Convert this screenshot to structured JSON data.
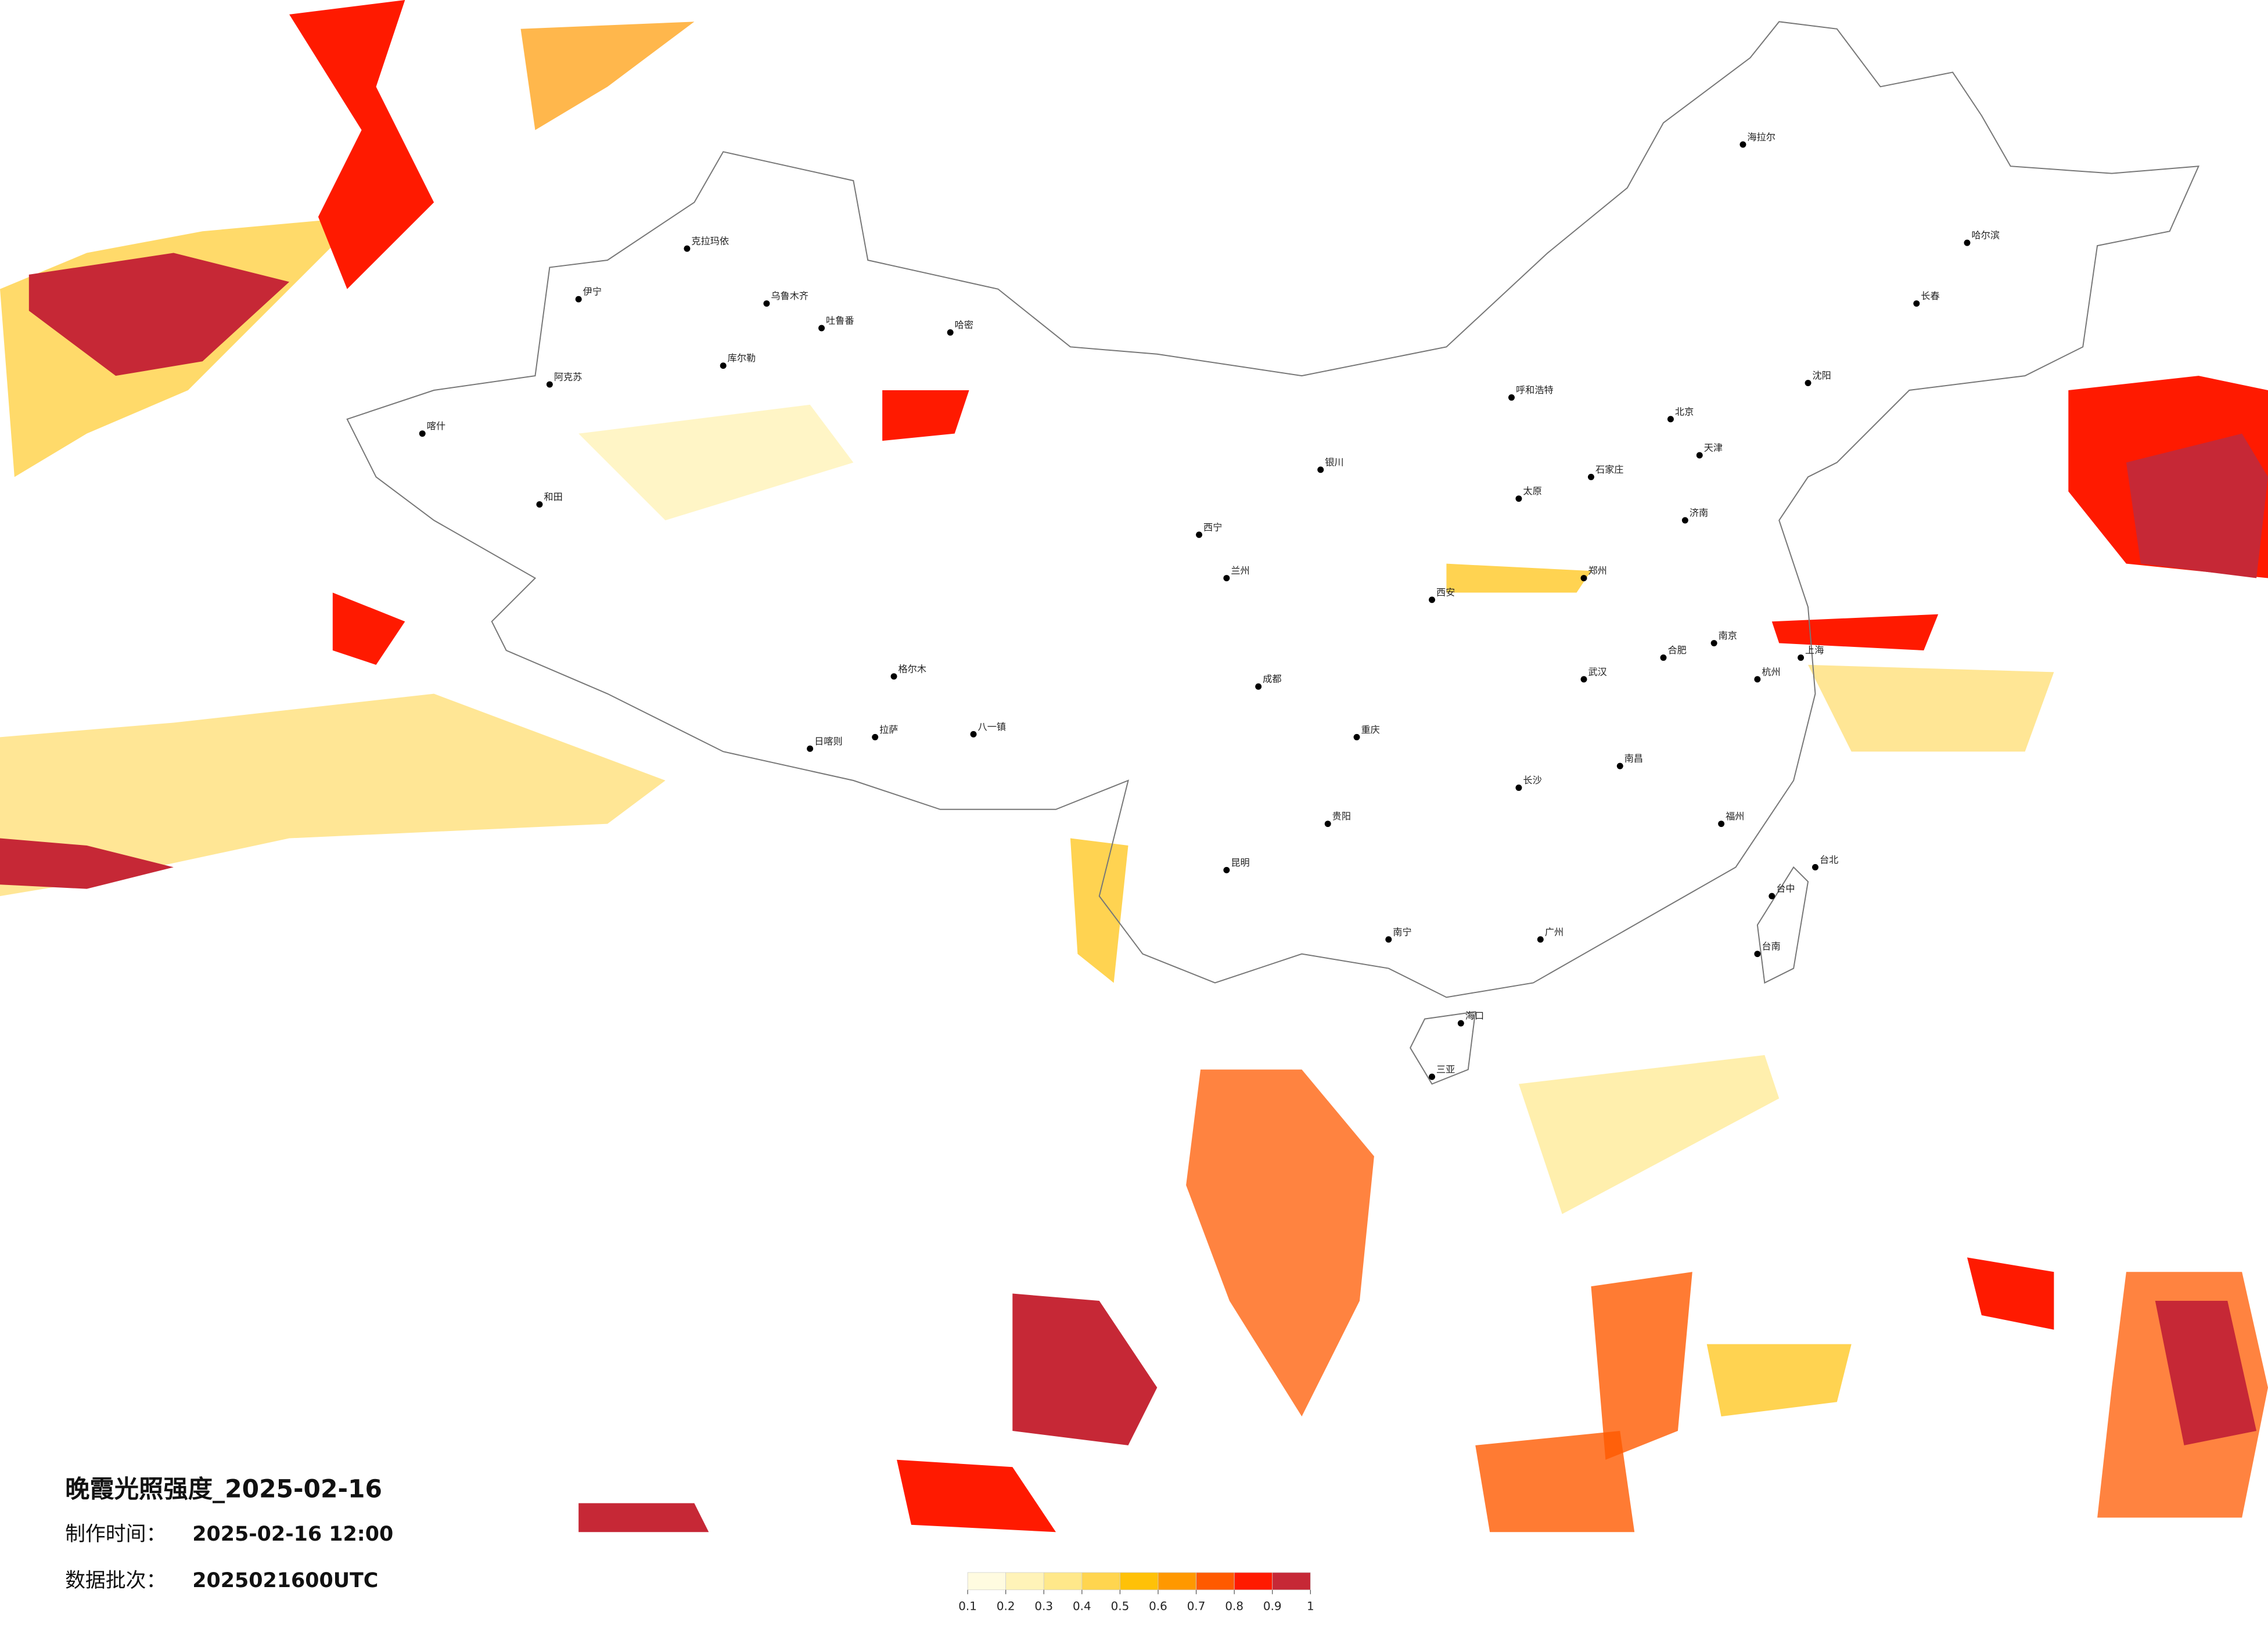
{
  "title": "晚霞光照强度_2025-02-16",
  "made_time": {
    "label": "制作时间：",
    "value": "2025-02-16 12:00"
  },
  "batch": {
    "label": "数据批次：",
    "value": "2025021600UTC"
  },
  "legend": {
    "colors": [
      "#fffbe0",
      "#fff3b8",
      "#ffe88a",
      "#ffd54f",
      "#ffc107",
      "#ff9800",
      "#ff5a00",
      "#ff1a00",
      "#c62836"
    ],
    "ticks": [
      0.1,
      0.2,
      0.3,
      0.4,
      0.5,
      0.6,
      0.7,
      0.8,
      0.9,
      1
    ]
  },
  "cities": [
    "克拉玛依",
    "乌鲁木齐",
    "吐鲁番",
    "库尔勒",
    "阿克苏",
    "喀什",
    "和田",
    "伊宁",
    "哈密",
    "格尔木",
    "拉萨",
    "日喀则",
    "八一镇",
    "西宁",
    "兰州",
    "银川",
    "呼和浩特",
    "北京",
    "天津",
    "石家庄",
    "太原",
    "济南",
    "郑州",
    "西安",
    "成都",
    "重庆",
    "贵阳",
    "昆明",
    "南宁",
    "海口",
    "广州",
    "长沙",
    "武汉",
    "南昌",
    "福州",
    "杭州",
    "上海",
    "南京",
    "合肥",
    "沈阳",
    "长春",
    "哈尔滨",
    "海拉尔",
    "台北",
    "台中",
    "台南",
    "三亚"
  ]
}
